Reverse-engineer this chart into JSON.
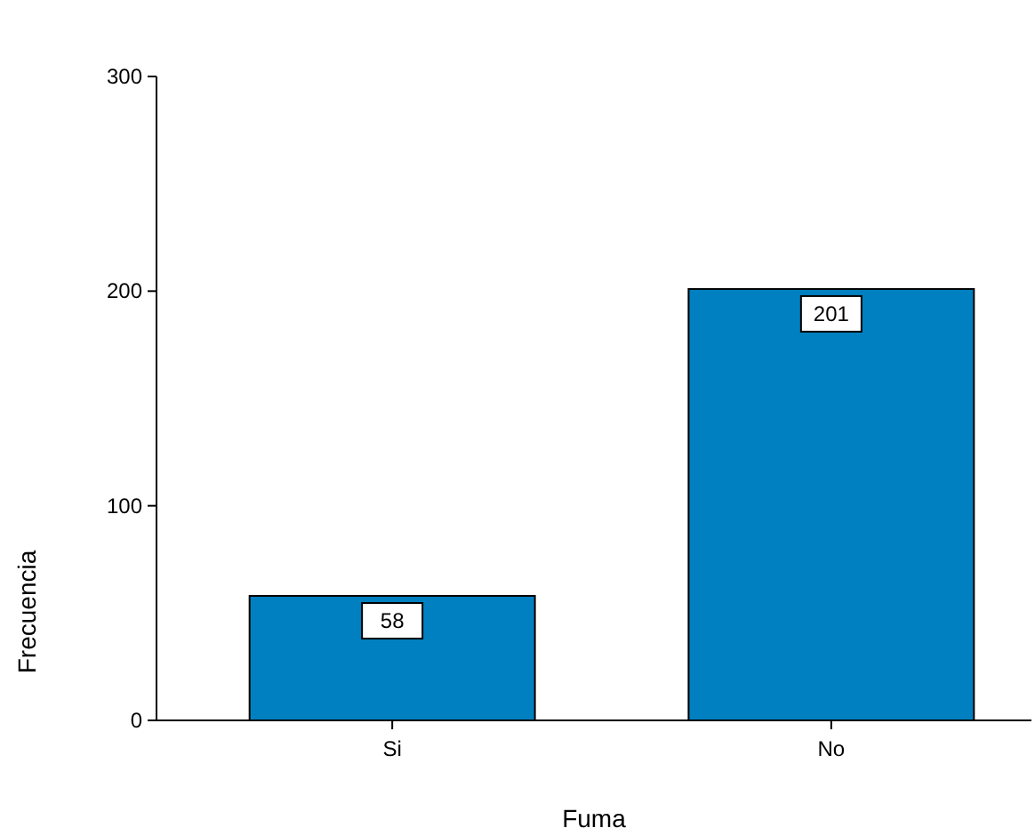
{
  "chart_data": {
    "type": "bar",
    "xlabel": "Fuma",
    "ylabel": "Frecuencia",
    "categories": [
      "Si",
      "No"
    ],
    "values": [
      58,
      201
    ],
    "color": "#0080c0",
    "ylim": [
      0,
      300
    ],
    "yticks": [
      0,
      100,
      200,
      300
    ],
    "data_labels": true
  }
}
